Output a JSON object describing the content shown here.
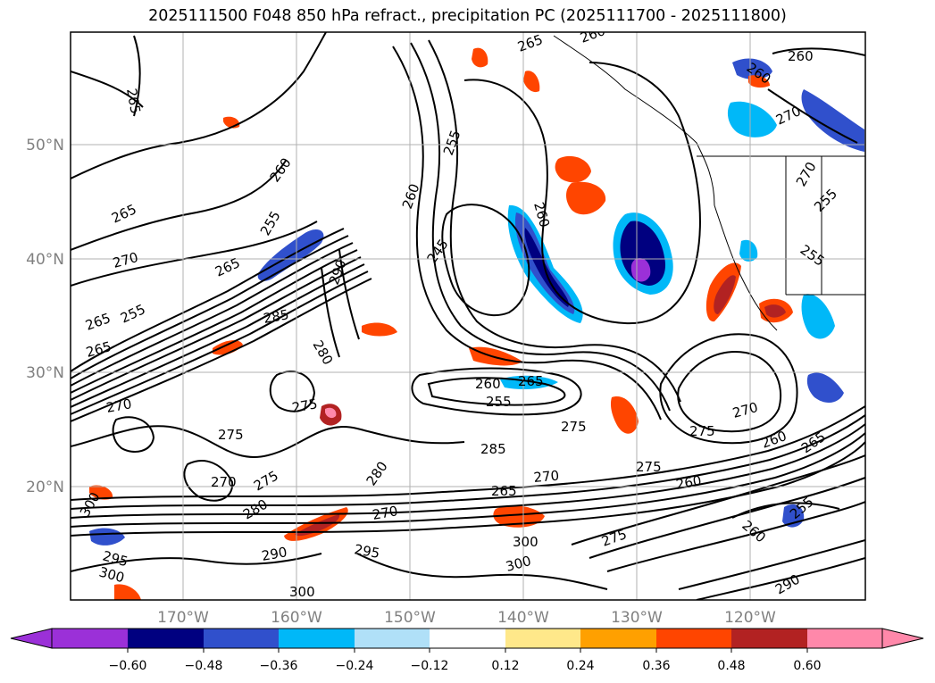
{
  "title": "2025111500 F048 850 hPa refract., precipitation PC (2025111700 - 2025111800)",
  "latitude_labels": [
    "50°N",
    "40°N",
    "30°N",
    "20°N"
  ],
  "longitude_labels": [
    "170°W",
    "160°W",
    "150°W",
    "140°W",
    "130°W",
    "120°W"
  ],
  "colorbar": {
    "tick_labels": [
      "−0.60",
      "−0.48",
      "−0.36",
      "−0.24",
      "−0.12",
      "0.12",
      "0.24",
      "0.36",
      "0.48",
      "0.60"
    ],
    "under_color": "#9b30d8",
    "over_color": "#ff88aa",
    "colors": [
      "#000080",
      "#3050cc",
      "#00b8f8",
      "#b0e0f8",
      "#ffffff",
      "#ffe88a",
      "#ffa000",
      "#ff4500",
      "#b22222"
    ]
  },
  "contour_labels": [
    "265",
    "260",
    "255",
    "265",
    "260",
    "265",
    "270",
    "270",
    "265",
    "260",
    "260",
    "255",
    "265",
    "270",
    "255",
    "260",
    "255",
    "245",
    "260",
    "255",
    "290",
    "285",
    "280",
    "265",
    "260",
    "255",
    "265",
    "275",
    "275",
    "275",
    "285",
    "275",
    "270",
    "260",
    "265",
    "270",
    "270",
    "260",
    "265",
    "275",
    "270",
    "275",
    "280",
    "280",
    "290",
    "295",
    "300",
    "295",
    "300",
    "300",
    "300",
    "275",
    "260",
    "290",
    "255",
    "270",
    "300"
  ],
  "feature_colors": {
    "contour": "#000000",
    "coast": "#000000",
    "gridline": "#b0b0b0"
  }
}
